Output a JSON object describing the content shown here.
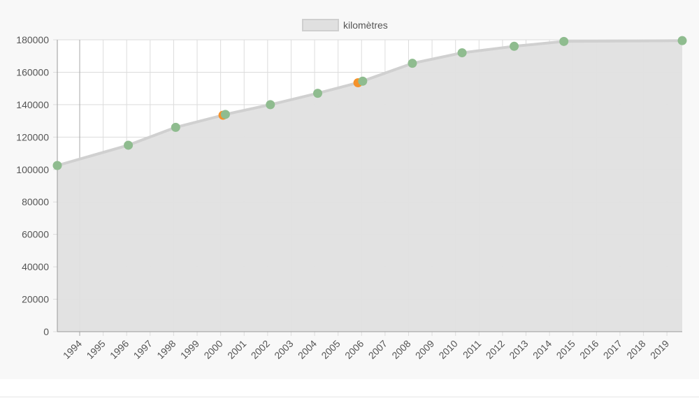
{
  "chart_data": {
    "type": "area",
    "legend": {
      "label": "kilomètres",
      "position": "top",
      "swatch_color": "#e0e0e0"
    },
    "x_tick_labels": [
      "1994",
      "1995",
      "1996",
      "1997",
      "1998",
      "1999",
      "2000",
      "2001",
      "2002",
      "2003",
      "2004",
      "2005",
      "2006",
      "2007",
      "2008",
      "2009",
      "2010",
      "2011",
      "2012",
      "2013",
      "2014",
      "2015",
      "2016",
      "2017",
      "2018",
      "2019"
    ],
    "xlim": [
      1993.1,
      2019.5
    ],
    "ylim": [
      0,
      180000
    ],
    "y_ticks": [
      0,
      20000,
      40000,
      60000,
      80000,
      100000,
      120000,
      140000,
      160000,
      180000
    ],
    "y_tick_labels": [
      "0",
      "20000",
      "40000",
      "60000",
      "80000",
      "100000",
      "120000",
      "140000",
      "160000",
      "180000"
    ],
    "grid": true,
    "series": [
      {
        "name": "kilomètres",
        "fill_color": "#e0e0e0",
        "line_color": "#d0d0d0",
        "points": [
          {
            "x": 1993.1,
            "y": 102500,
            "color": "#8fbc8f"
          },
          {
            "x": 1996.1,
            "y": 115000,
            "color": "#8fbc8f"
          },
          {
            "x": 1998.1,
            "y": 126000,
            "color": "#8fbc8f"
          },
          {
            "x": 2000.1,
            "y": 133500,
            "color": "#f5922b"
          },
          {
            "x": 2000.2,
            "y": 134000,
            "color": "#8fbc8f"
          },
          {
            "x": 2002.1,
            "y": 140000,
            "color": "#8fbc8f"
          },
          {
            "x": 2004.1,
            "y": 147000,
            "color": "#8fbc8f"
          },
          {
            "x": 2005.8,
            "y": 153500,
            "color": "#f5922b"
          },
          {
            "x": 2006.0,
            "y": 154500,
            "color": "#8fbc8f"
          },
          {
            "x": 2008.1,
            "y": 165500,
            "color": "#8fbc8f"
          },
          {
            "x": 2010.2,
            "y": 172000,
            "color": "#8fbc8f"
          },
          {
            "x": 2012.4,
            "y": 176000,
            "color": "#8fbc8f"
          },
          {
            "x": 2014.5,
            "y": 179000,
            "color": "#8fbc8f"
          },
          {
            "x": 2019.5,
            "y": 179500,
            "color": "#8fbc8f"
          }
        ]
      }
    ]
  }
}
